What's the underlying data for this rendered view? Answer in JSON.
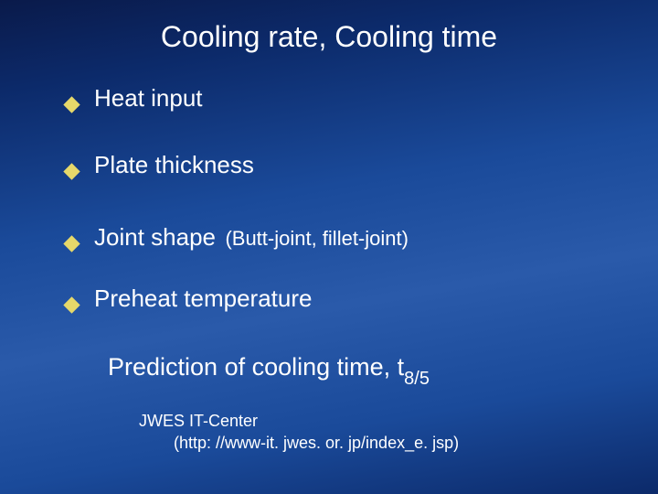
{
  "slide": {
    "title": "Cooling rate,  Cooling time",
    "bullets": [
      {
        "text": "Heat input",
        "sub": ""
      },
      {
        "text": "Plate thickness",
        "sub": ""
      },
      {
        "text": "Joint shape",
        "sub": "(Butt-joint, fillet-joint)"
      },
      {
        "text": "Preheat temperature",
        "sub": ""
      }
    ],
    "prediction": {
      "prefix": "Prediction of cooling time, t",
      "subscript": "8/5"
    },
    "footer": {
      "line1": "JWES IT-Center",
      "line2": "(http: //www-it. jwes. or. jp/index_e. jsp)"
    },
    "style": {
      "bullet_color": "#e6d86a",
      "text_color": "#ffffff",
      "title_fontsize": 32,
      "bullet_fontsize": 26,
      "bullet_sub_fontsize": 22,
      "prediction_fontsize": 27,
      "footer_fontsize": 18,
      "background_gradient": [
        "#0a1a4a",
        "#0c2a6a",
        "#1a4a9a",
        "#2a5aaa",
        "#1a4a9a",
        "#0c2a6a"
      ]
    }
  }
}
